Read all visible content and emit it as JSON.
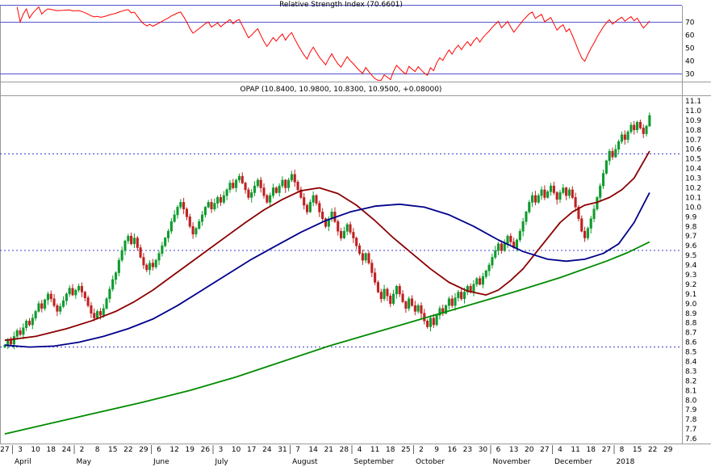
{
  "chart_data": [
    {
      "type": "line",
      "name": "rsi-indicator",
      "title": "Relative Strength Index (70.6601)",
      "last_value": 70.6601,
      "period": 14,
      "line_color": "#ff0000",
      "band_color": "#5555cc",
      "bands": [
        70,
        30
      ],
      "y_ticks": [
        70,
        60,
        50,
        40,
        30
      ],
      "ylim": [
        24,
        83
      ],
      "legend_position": "top-center"
    },
    {
      "type": "candlestick",
      "name": "price-panel",
      "title": "OPAP (10.8400, 10.9800, 10.8300, 10.9500, +0.08000)",
      "symbol": "OPAP",
      "last_quote": {
        "open": 10.84,
        "high": 10.98,
        "low": 10.83,
        "close": 10.95,
        "change": "+0.08000"
      },
      "ylim": [
        7.55,
        11.15
      ],
      "y_ticks": {
        "min": 7.6,
        "max": 11.1,
        "step": 0.1
      },
      "support_lines": [
        10.55,
        9.55,
        8.55
      ],
      "support_color": "#3c3cd0",
      "up_color": "#0f9b2e",
      "down_color": "#c02020",
      "first_open": 8.55,
      "closes": [
        8.57,
        8.62,
        8.58,
        8.66,
        8.72,
        8.68,
        8.75,
        8.82,
        8.78,
        8.85,
        8.92,
        9.0,
        8.95,
        9.04,
        9.1,
        9.05,
        8.98,
        8.92,
        8.97,
        9.03,
        9.1,
        9.16,
        9.09,
        9.14,
        9.18,
        9.12,
        9.06,
        8.98,
        8.9,
        8.85,
        8.92,
        8.88,
        8.95,
        9.05,
        9.15,
        9.25,
        9.32,
        9.45,
        9.55,
        9.65,
        9.7,
        9.62,
        9.68,
        9.58,
        9.48,
        9.4,
        9.35,
        9.42,
        9.38,
        9.45,
        9.52,
        9.6,
        9.68,
        9.75,
        9.85,
        9.92,
        10.0,
        10.05,
        9.98,
        9.9,
        9.8,
        9.72,
        9.78,
        9.85,
        9.92,
        10.0,
        10.05,
        9.98,
        10.04,
        10.1,
        10.05,
        10.12,
        10.18,
        10.25,
        10.2,
        10.28,
        10.32,
        10.25,
        10.18,
        10.1,
        10.15,
        10.22,
        10.28,
        10.2,
        10.12,
        10.05,
        10.12,
        10.2,
        10.15,
        10.22,
        10.28,
        10.2,
        10.28,
        10.34,
        10.26,
        10.18,
        10.1,
        10.02,
        9.95,
        10.05,
        10.12,
        10.04,
        9.95,
        9.88,
        9.8,
        9.88,
        9.95,
        9.85,
        9.75,
        9.68,
        9.75,
        9.82,
        9.74,
        9.68,
        9.6,
        9.52,
        9.45,
        9.52,
        9.42,
        9.32,
        9.22,
        9.12,
        9.05,
        9.15,
        9.08,
        9.0,
        9.1,
        9.18,
        9.1,
        9.02,
        8.95,
        9.05,
        8.98,
        8.92,
        8.98,
        8.9,
        8.82,
        8.76,
        8.85,
        8.78,
        8.88,
        8.95,
        8.9,
        8.98,
        9.05,
        8.98,
        9.06,
        9.12,
        9.05,
        9.12,
        9.18,
        9.12,
        9.2,
        9.26,
        9.2,
        9.28,
        9.34,
        9.4,
        9.48,
        9.55,
        9.62,
        9.55,
        9.62,
        9.7,
        9.64,
        9.58,
        9.66,
        9.75,
        9.85,
        9.95,
        10.05,
        10.12,
        10.05,
        10.12,
        10.18,
        10.1,
        10.16,
        10.22,
        10.15,
        10.08,
        10.15,
        10.2,
        10.12,
        10.18,
        10.1,
        10.0,
        9.88,
        9.75,
        9.68,
        9.78,
        9.88,
        9.98,
        10.1,
        10.22,
        10.35,
        10.48,
        10.58,
        10.52,
        10.6,
        10.68,
        10.75,
        10.7,
        10.78,
        10.85,
        10.8,
        10.88,
        10.82,
        10.76,
        10.84,
        10.95
      ],
      "moving_averages": [
        {
          "name": "ma-fast",
          "color": "#8b0000",
          "points": [
            [
              0,
              8.62
            ],
            [
              10,
              8.66
            ],
            [
              20,
              8.74
            ],
            [
              28,
              8.82
            ],
            [
              36,
              8.92
            ],
            [
              42,
              9.02
            ],
            [
              48,
              9.14
            ],
            [
              54,
              9.28
            ],
            [
              60,
              9.42
            ],
            [
              66,
              9.56
            ],
            [
              72,
              9.7
            ],
            [
              78,
              9.84
            ],
            [
              84,
              9.97
            ],
            [
              90,
              10.08
            ],
            [
              96,
              10.17
            ],
            [
              102,
              10.2
            ],
            [
              108,
              10.14
            ],
            [
              114,
              10.02
            ],
            [
              120,
              9.86
            ],
            [
              126,
              9.68
            ],
            [
              132,
              9.52
            ],
            [
              138,
              9.36
            ],
            [
              144,
              9.22
            ],
            [
              150,
              9.13
            ],
            [
              156,
              9.09
            ],
            [
              160,
              9.14
            ],
            [
              164,
              9.24
            ],
            [
              168,
              9.36
            ],
            [
              172,
              9.52
            ],
            [
              176,
              9.68
            ],
            [
              180,
              9.84
            ],
            [
              184,
              9.95
            ],
            [
              188,
              10.02
            ],
            [
              192,
              10.05
            ],
            [
              196,
              10.1
            ],
            [
              200,
              10.18
            ],
            [
              204,
              10.3
            ],
            [
              209,
              10.58
            ]
          ]
        },
        {
          "name": "ma-mid",
          "color": "#00008b",
          "points": [
            [
              0,
              8.57
            ],
            [
              8,
              8.55
            ],
            [
              16,
              8.56
            ],
            [
              24,
              8.6
            ],
            [
              32,
              8.66
            ],
            [
              40,
              8.74
            ],
            [
              48,
              8.84
            ],
            [
              56,
              8.98
            ],
            [
              64,
              9.14
            ],
            [
              72,
              9.3
            ],
            [
              80,
              9.46
            ],
            [
              88,
              9.6
            ],
            [
              96,
              9.74
            ],
            [
              104,
              9.86
            ],
            [
              112,
              9.95
            ],
            [
              120,
              10.01
            ],
            [
              128,
              10.03
            ],
            [
              136,
              10.0
            ],
            [
              144,
              9.92
            ],
            [
              152,
              9.8
            ],
            [
              160,
              9.66
            ],
            [
              168,
              9.54
            ],
            [
              176,
              9.46
            ],
            [
              182,
              9.44
            ],
            [
              188,
              9.46
            ],
            [
              194,
              9.52
            ],
            [
              199,
              9.62
            ],
            [
              204,
              9.84
            ],
            [
              209,
              10.15
            ]
          ]
        },
        {
          "name": "ma-slow",
          "color": "#008b00",
          "points": [
            [
              0,
              7.65
            ],
            [
              15,
              7.76
            ],
            [
              30,
              7.87
            ],
            [
              45,
              7.98
            ],
            [
              60,
              8.1
            ],
            [
              75,
              8.24
            ],
            [
              90,
              8.4
            ],
            [
              105,
              8.56
            ],
            [
              120,
              8.7
            ],
            [
              135,
              8.84
            ],
            [
              150,
              8.98
            ],
            [
              165,
              9.12
            ],
            [
              180,
              9.27
            ],
            [
              195,
              9.44
            ],
            [
              202,
              9.53
            ],
            [
              209,
              9.64
            ]
          ]
        }
      ],
      "x_axis": {
        "slots": 220,
        "week_tick_interval": 5,
        "day_labels": [
          "27",
          "3",
          "10",
          "18",
          "24",
          "2",
          "8",
          "15",
          "22",
          "29",
          "6",
          "12",
          "19",
          "26",
          "3",
          "10",
          "17",
          "24",
          "31",
          "7",
          "14",
          "21",
          "28",
          "4",
          "11",
          "18",
          "25",
          "2",
          "9",
          "16",
          "23",
          "30",
          "6",
          "13",
          "20",
          "27",
          "4",
          "11",
          "18",
          "27",
          "8",
          "15",
          "22",
          "29"
        ],
        "month_boundaries": [
          2.5,
          22.5,
          47.5,
          67.5,
          92.5,
          112.5,
          132.5,
          157.5,
          177.5,
          197.5
        ],
        "months": [
          {
            "label": "April",
            "index": 5
          },
          {
            "label": "May",
            "index": 25
          },
          {
            "label": "June",
            "index": 50
          },
          {
            "label": "July",
            "index": 70
          },
          {
            "label": "August",
            "index": 95
          },
          {
            "label": "September",
            "index": 115
          },
          {
            "label": "October",
            "index": 135
          },
          {
            "label": "November",
            "index": 160
          },
          {
            "label": "December",
            "index": 180
          },
          {
            "label": "2018",
            "index": 200
          }
        ]
      }
    }
  ]
}
